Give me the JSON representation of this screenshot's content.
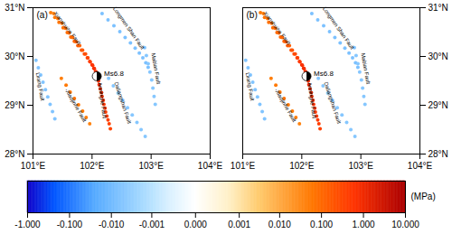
{
  "chart_data": {
    "type": "scatter",
    "xlim": [
      101.0,
      104.0
    ],
    "xticks": [
      {
        "value": 101,
        "label": "101°E"
      },
      {
        "value": 102,
        "label": "102°E"
      },
      {
        "value": 103,
        "label": "103°E"
      },
      {
        "value": 104,
        "label": "104°E"
      }
    ],
    "ylim": [
      28.0,
      31.0
    ],
    "yticks": [
      {
        "value": 28,
        "label": "28°N"
      },
      {
        "value": 29,
        "label": "29°N"
      },
      {
        "value": 30,
        "label": "30°N"
      },
      {
        "value": 31,
        "label": "31°N"
      }
    ],
    "clim": [
      -1.0,
      10.0
    ],
    "cticks": [
      {
        "value": -1.0,
        "label": "-1.000"
      },
      {
        "value": -0.1,
        "label": "-0.100"
      },
      {
        "value": -0.01,
        "label": "-0.010"
      },
      {
        "value": -0.001,
        "label": "-0.001"
      },
      {
        "value": 0.0,
        "label": "0.000"
      },
      {
        "value": 0.001,
        "label": "0.001"
      },
      {
        "value": 0.01,
        "label": "0.010"
      },
      {
        "value": 0.1,
        "label": "0.100"
      },
      {
        "value": 1.0,
        "label": "1.000"
      },
      {
        "value": 10.0,
        "label": "10.000"
      }
    ],
    "colorbar_label": "(MPa)",
    "annotations": [
      {
        "text": "Xianshuihe Fault",
        "x": 101.58,
        "y": 30.58
      },
      {
        "text": "Longmen Shan Fault",
        "x": 102.62,
        "y": 30.58
      },
      {
        "text": "Mabian Fault",
        "x": 103.08,
        "y": 29.75
      },
      {
        "text": "Anninghe Fault",
        "x": 102.17,
        "y": 29.1
      },
      {
        "text": "Daliangshan Fault",
        "x": 102.52,
        "y": 29.05
      },
      {
        "text": "Lirang Fault",
        "x": 101.12,
        "y": 29.38
      },
      {
        "text": "-Xiaojinhe Fault",
        "x": 101.72,
        "y": 29.0
      }
    ],
    "event": {
      "text": "Ms6.8",
      "x": 102.08,
      "y": 29.595,
      "marker": "beachball"
    },
    "panels": [
      {
        "title": "(a)",
        "x": [
          101.3,
          101.37,
          101.44,
          101.51,
          101.58,
          101.64,
          101.7,
          101.76,
          101.82,
          101.87,
          101.92,
          101.96,
          102.0,
          102.03,
          102.06,
          102.08,
          102.09,
          102.1,
          102.11,
          101.35,
          101.42,
          101.49,
          101.55,
          101.61,
          101.67,
          101.73,
          101.79,
          101.84,
          101.89,
          101.93,
          101.97,
          102.01,
          102.04,
          102.07,
          102.11,
          102.12,
          102.14,
          102.16,
          102.17,
          102.19,
          102.2,
          102.22,
          102.23,
          102.25,
          102.27,
          102.29,
          102.31,
          102.17,
          102.27,
          102.37,
          102.47,
          102.56,
          102.65,
          102.73,
          102.8,
          102.86,
          102.91,
          102.95,
          102.89,
          102.92,
          102.95,
          102.98,
          103.01,
          103.03,
          103.05,
          103.07,
          102.28,
          102.36,
          102.44,
          102.52,
          102.6,
          102.68,
          102.76,
          102.83,
          102.9,
          101.05,
          101.09,
          101.13,
          101.17,
          101.21,
          101.25,
          101.29,
          101.33,
          101.37,
          101.48,
          101.56,
          101.63,
          101.7,
          101.77,
          101.84,
          101.9,
          101.96
        ],
        "y": [
          30.9,
          30.8,
          30.7,
          30.59,
          30.49,
          30.4,
          30.31,
          30.22,
          30.13,
          30.05,
          29.97,
          29.9,
          29.83,
          29.76,
          29.69,
          29.63,
          29.6,
          29.57,
          29.54,
          30.88,
          30.78,
          30.68,
          30.58,
          30.48,
          30.39,
          30.3,
          30.22,
          30.13,
          30.05,
          29.97,
          29.89,
          29.82,
          29.75,
          29.68,
          29.5,
          29.42,
          29.34,
          29.26,
          29.18,
          29.1,
          29.02,
          28.94,
          28.86,
          28.78,
          28.7,
          28.62,
          28.52,
          30.88,
          30.75,
          30.63,
          30.51,
          30.39,
          30.28,
          30.17,
          30.07,
          29.97,
          29.87,
          29.78,
          30.18,
          30.02,
          29.85,
          29.68,
          29.52,
          29.35,
          29.18,
          29.02,
          29.55,
          29.4,
          29.25,
          29.1,
          28.95,
          28.8,
          28.65,
          28.5,
          28.36,
          29.92,
          29.77,
          29.62,
          29.47,
          29.32,
          29.17,
          29.02,
          28.87,
          28.72,
          29.55,
          29.41,
          29.27,
          29.14,
          29.01,
          28.88,
          28.75,
          28.62
        ],
        "values": [
          0.05,
          0.06,
          0.07,
          0.08,
          0.09,
          0.1,
          0.12,
          0.15,
          0.2,
          0.28,
          0.4,
          0.55,
          0.7,
          0.85,
          0.95,
          1.0,
          0.98,
          0.95,
          0.9,
          0.04,
          0.05,
          0.06,
          0.07,
          0.08,
          0.09,
          0.11,
          0.13,
          0.18,
          0.25,
          0.35,
          0.48,
          0.62,
          0.78,
          0.9,
          0.85,
          0.8,
          0.75,
          0.7,
          0.65,
          0.6,
          0.55,
          0.5,
          0.46,
          0.43,
          0.4,
          0.38,
          0.35,
          -0.007,
          -0.007,
          -0.007,
          -0.007,
          -0.007,
          -0.007,
          -0.007,
          -0.007,
          -0.007,
          -0.007,
          -0.007,
          -0.005,
          -0.005,
          -0.005,
          -0.005,
          -0.005,
          -0.005,
          -0.005,
          -0.005,
          -0.005,
          -0.005,
          -0.005,
          -0.005,
          -0.005,
          -0.005,
          -0.005,
          -0.005,
          -0.005,
          -0.006,
          -0.006,
          -0.006,
          -0.006,
          -0.006,
          -0.006,
          -0.006,
          -0.006,
          -0.006,
          0.05,
          0.06,
          0.07,
          0.08,
          0.07,
          0.06,
          0.05,
          0.04
        ]
      },
      {
        "title": "(b)",
        "x": [
          101.3,
          101.37,
          101.44,
          101.51,
          101.58,
          101.64,
          101.7,
          101.76,
          101.82,
          101.87,
          101.92,
          101.96,
          102.0,
          102.03,
          102.06,
          102.08,
          102.09,
          102.1,
          102.11,
          101.35,
          101.42,
          101.49,
          101.55,
          101.61,
          101.67,
          101.73,
          101.79,
          101.84,
          101.89,
          101.93,
          101.97,
          102.01,
          102.04,
          102.07,
          102.11,
          102.12,
          102.14,
          102.16,
          102.17,
          102.19,
          102.2,
          102.22,
          102.23,
          102.25,
          102.27,
          102.29,
          102.31,
          102.17,
          102.27,
          102.37,
          102.47,
          102.56,
          102.65,
          102.73,
          102.8,
          102.86,
          102.91,
          102.95,
          102.89,
          102.92,
          102.95,
          102.98,
          103.01,
          103.03,
          103.05,
          103.07,
          102.28,
          102.36,
          102.44,
          102.52,
          102.6,
          102.68,
          102.76,
          102.83,
          102.9,
          101.05,
          101.09,
          101.13,
          101.17,
          101.21,
          101.25,
          101.29,
          101.33,
          101.37,
          101.48,
          101.56,
          101.63,
          101.7,
          101.77,
          101.84,
          101.9,
          101.96
        ],
        "y": [
          30.9,
          30.8,
          30.7,
          30.59,
          30.49,
          30.4,
          30.31,
          30.22,
          30.13,
          30.05,
          29.97,
          29.9,
          29.83,
          29.76,
          29.69,
          29.63,
          29.6,
          29.57,
          29.54,
          30.88,
          30.78,
          30.68,
          30.58,
          30.48,
          30.39,
          30.3,
          30.22,
          30.13,
          30.05,
          29.97,
          29.89,
          29.82,
          29.75,
          29.68,
          29.5,
          29.42,
          29.34,
          29.26,
          29.18,
          29.1,
          29.02,
          28.94,
          28.86,
          28.78,
          28.7,
          28.62,
          28.52,
          30.88,
          30.75,
          30.63,
          30.51,
          30.39,
          30.28,
          30.17,
          30.07,
          29.97,
          29.87,
          29.78,
          30.18,
          30.02,
          29.85,
          29.68,
          29.52,
          29.35,
          29.18,
          29.02,
          29.55,
          29.4,
          29.25,
          29.1,
          28.95,
          28.8,
          28.65,
          28.5,
          28.36,
          29.92,
          29.77,
          29.62,
          29.47,
          29.32,
          29.17,
          29.02,
          28.87,
          28.72,
          29.55,
          29.41,
          29.27,
          29.14,
          29.01,
          28.88,
          28.75,
          28.62
        ],
        "values": [
          0.0575,
          0.069,
          0.0805,
          0.092,
          0.1035,
          0.115,
          0.138,
          0.1725,
          0.23,
          0.322,
          0.46,
          0.6325,
          0.805,
          0.9775,
          1.0925,
          1.15,
          1.127,
          1.0925,
          1.035,
          0.046,
          0.0575,
          0.069,
          0.0805,
          0.092,
          0.1035,
          0.1265,
          0.1495,
          0.207,
          0.2875,
          0.4025,
          0.552,
          0.713,
          0.897,
          1.035,
          0.9775,
          0.92,
          0.8625,
          0.805,
          0.7475,
          0.69,
          0.6325,
          0.575,
          0.529,
          0.4945,
          0.46,
          0.437,
          0.4025,
          -0.007,
          -0.007,
          -0.007,
          -0.007,
          -0.007,
          -0.007,
          -0.007,
          -0.007,
          -0.007,
          -0.007,
          -0.007,
          -0.005,
          -0.005,
          -0.005,
          -0.005,
          -0.005,
          -0.005,
          -0.005,
          -0.005,
          -0.005,
          -0.005,
          -0.005,
          -0.005,
          -0.005,
          -0.005,
          -0.005,
          -0.005,
          -0.005,
          -0.006,
          -0.006,
          -0.006,
          -0.006,
          -0.006,
          -0.006,
          -0.006,
          -0.006,
          -0.006,
          0.05,
          0.06,
          0.07,
          0.08,
          0.07,
          0.06,
          0.05,
          0.04
        ]
      }
    ]
  }
}
